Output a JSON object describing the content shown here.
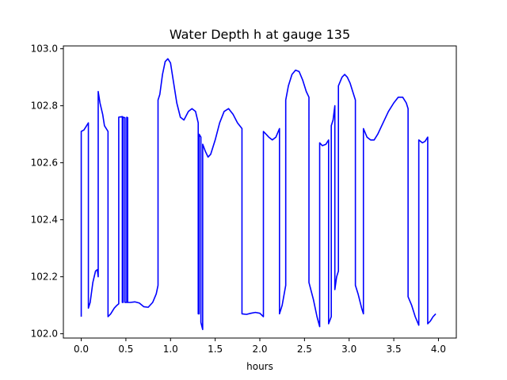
{
  "chart_data": {
    "type": "line",
    "title": "Water Depth h at gauge 135",
    "xlabel": "hours",
    "ylabel": "",
    "xlim": [
      -0.2,
      4.2
    ],
    "ylim": [
      101.985,
      103.01
    ],
    "xticks": [
      0.0,
      0.5,
      1.0,
      1.5,
      2.0,
      2.5,
      3.0,
      3.5,
      4.0
    ],
    "xtick_labels": [
      "0.0",
      "0.5",
      "1.0",
      "1.5",
      "2.0",
      "2.5",
      "3.0",
      "3.5",
      "4.0"
    ],
    "yticks": [
      102.0,
      102.2,
      102.4,
      102.6,
      102.8,
      103.0
    ],
    "ytick_labels": [
      "102.0",
      "102.2",
      "102.4",
      "102.6",
      "102.8",
      "103.0"
    ],
    "grid": false,
    "series": [
      {
        "color": "#0000ff",
        "points": [
          [
            0.0,
            102.06
          ],
          [
            0.0,
            102.71
          ],
          [
            0.03,
            102.715
          ],
          [
            0.06,
            102.73
          ],
          [
            0.08,
            102.74
          ],
          [
            0.08,
            102.09
          ],
          [
            0.1,
            102.11
          ],
          [
            0.13,
            102.18
          ],
          [
            0.16,
            102.22
          ],
          [
            0.18,
            102.225
          ],
          [
            0.19,
            102.2
          ],
          [
            0.19,
            102.85
          ],
          [
            0.21,
            102.81
          ],
          [
            0.24,
            102.77
          ],
          [
            0.26,
            102.73
          ],
          [
            0.3,
            102.71
          ],
          [
            0.3,
            102.06
          ],
          [
            0.33,
            102.07
          ],
          [
            0.37,
            102.09
          ],
          [
            0.4,
            102.1
          ],
          [
            0.42,
            102.105
          ],
          [
            0.42,
            102.76
          ],
          [
            0.46,
            102.762
          ],
          [
            0.46,
            102.11
          ],
          [
            0.47,
            102.11
          ],
          [
            0.47,
            102.76
          ],
          [
            0.49,
            102.758
          ],
          [
            0.49,
            102.11
          ],
          [
            0.51,
            102.11
          ],
          [
            0.51,
            102.76
          ],
          [
            0.52,
            102.758
          ],
          [
            0.52,
            102.11
          ],
          [
            0.55,
            102.11
          ],
          [
            0.6,
            102.112
          ],
          [
            0.65,
            102.108
          ],
          [
            0.7,
            102.095
          ],
          [
            0.75,
            102.093
          ],
          [
            0.8,
            102.11
          ],
          [
            0.84,
            102.14
          ],
          [
            0.86,
            102.17
          ],
          [
            0.86,
            102.82
          ],
          [
            0.88,
            102.84
          ],
          [
            0.91,
            102.91
          ],
          [
            0.94,
            102.955
          ],
          [
            0.97,
            102.965
          ],
          [
            1.0,
            102.95
          ],
          [
            1.03,
            102.89
          ],
          [
            1.07,
            102.81
          ],
          [
            1.11,
            102.76
          ],
          [
            1.15,
            102.75
          ],
          [
            1.2,
            102.78
          ],
          [
            1.24,
            102.79
          ],
          [
            1.28,
            102.78
          ],
          [
            1.31,
            102.74
          ],
          [
            1.31,
            102.07
          ],
          [
            1.32,
            102.07
          ],
          [
            1.32,
            102.7
          ],
          [
            1.34,
            102.69
          ],
          [
            1.34,
            102.04
          ],
          [
            1.36,
            102.015
          ],
          [
            1.36,
            102.665
          ],
          [
            1.39,
            102.64
          ],
          [
            1.42,
            102.62
          ],
          [
            1.45,
            102.63
          ],
          [
            1.5,
            102.68
          ],
          [
            1.55,
            102.74
          ],
          [
            1.6,
            102.78
          ],
          [
            1.65,
            102.79
          ],
          [
            1.7,
            102.77
          ],
          [
            1.75,
            102.74
          ],
          [
            1.8,
            102.72
          ],
          [
            1.8,
            102.07
          ],
          [
            1.85,
            102.068
          ],
          [
            1.9,
            102.072
          ],
          [
            1.95,
            102.075
          ],
          [
            2.0,
            102.072
          ],
          [
            2.04,
            102.06
          ],
          [
            2.04,
            102.71
          ],
          [
            2.07,
            102.7
          ],
          [
            2.1,
            102.69
          ],
          [
            2.14,
            102.68
          ],
          [
            2.18,
            102.69
          ],
          [
            2.22,
            102.72
          ],
          [
            2.22,
            102.07
          ],
          [
            2.25,
            102.1
          ],
          [
            2.29,
            102.17
          ],
          [
            2.29,
            102.82
          ],
          [
            2.32,
            102.87
          ],
          [
            2.36,
            102.91
          ],
          [
            2.4,
            102.925
          ],
          [
            2.44,
            102.92
          ],
          [
            2.48,
            102.89
          ],
          [
            2.52,
            102.85
          ],
          [
            2.55,
            102.83
          ],
          [
            2.55,
            102.18
          ],
          [
            2.6,
            102.12
          ],
          [
            2.64,
            102.06
          ],
          [
            2.67,
            102.025
          ],
          [
            2.67,
            102.67
          ],
          [
            2.7,
            102.66
          ],
          [
            2.74,
            102.665
          ],
          [
            2.77,
            102.68
          ],
          [
            2.77,
            102.035
          ],
          [
            2.8,
            102.06
          ],
          [
            2.8,
            102.73
          ],
          [
            2.82,
            102.75
          ],
          [
            2.84,
            102.8
          ],
          [
            2.84,
            102.155
          ],
          [
            2.86,
            102.2
          ],
          [
            2.88,
            102.22
          ],
          [
            2.88,
            102.87
          ],
          [
            2.92,
            102.9
          ],
          [
            2.95,
            102.91
          ],
          [
            2.98,
            102.9
          ],
          [
            3.01,
            102.88
          ],
          [
            3.04,
            102.85
          ],
          [
            3.07,
            102.82
          ],
          [
            3.07,
            102.17
          ],
          [
            3.1,
            102.14
          ],
          [
            3.14,
            102.09
          ],
          [
            3.16,
            102.07
          ],
          [
            3.16,
            102.72
          ],
          [
            3.2,
            102.69
          ],
          [
            3.24,
            102.68
          ],
          [
            3.28,
            102.68
          ],
          [
            3.32,
            102.7
          ],
          [
            3.38,
            102.74
          ],
          [
            3.44,
            102.78
          ],
          [
            3.5,
            102.81
          ],
          [
            3.55,
            102.83
          ],
          [
            3.6,
            102.83
          ],
          [
            3.64,
            102.81
          ],
          [
            3.66,
            102.79
          ],
          [
            3.66,
            102.13
          ],
          [
            3.7,
            102.1
          ],
          [
            3.74,
            102.06
          ],
          [
            3.78,
            102.03
          ],
          [
            3.78,
            102.68
          ],
          [
            3.82,
            102.67
          ],
          [
            3.85,
            102.675
          ],
          [
            3.88,
            102.69
          ],
          [
            3.88,
            102.035
          ],
          [
            3.91,
            102.045
          ],
          [
            3.94,
            102.06
          ],
          [
            3.97,
            102.07
          ]
        ]
      }
    ]
  }
}
